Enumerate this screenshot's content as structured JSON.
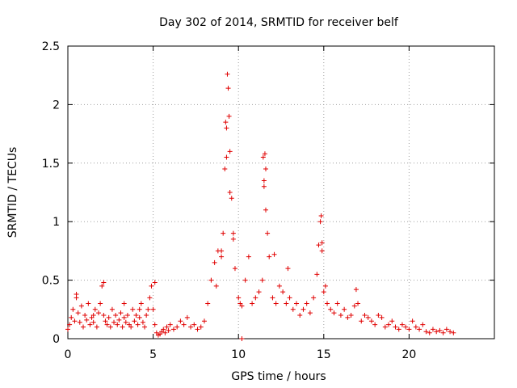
{
  "chart_data": {
    "type": "scatter",
    "title": "Day 302 of 2014, SRMTID for receiver belf",
    "xlabel": "GPS time / hours",
    "ylabel": "SRMTID / TECUs",
    "xlim": [
      0,
      25
    ],
    "ylim": [
      0,
      2.5
    ],
    "x_ticks": [
      0,
      5,
      10,
      15,
      20
    ],
    "x_tick_labels": [
      "0",
      "5",
      "10",
      "15",
      "20"
    ],
    "y_ticks": [
      0,
      0.5,
      1,
      1.5,
      2,
      2.5
    ],
    "y_tick_labels": [
      "0",
      "0.5",
      "1",
      "1.5",
      "2",
      "2.5"
    ],
    "grid": true,
    "marker": "plus",
    "color": "#e00000",
    "series": [
      {
        "name": "SRMTID",
        "x": [
          0.0,
          0.1,
          0.2,
          0.3,
          0.4,
          0.5,
          0.6,
          0.7,
          0.8,
          0.9,
          1.0,
          1.1,
          1.2,
          1.3,
          1.4,
          1.5,
          1.6,
          1.7,
          1.8,
          1.9,
          2.0,
          2.1,
          2.2,
          2.3,
          2.4,
          2.5,
          2.6,
          2.7,
          2.8,
          2.9,
          3.0,
          3.1,
          3.2,
          3.3,
          3.4,
          3.5,
          3.6,
          3.7,
          3.8,
          3.9,
          4.0,
          4.1,
          4.2,
          4.3,
          4.4,
          4.5,
          4.6,
          4.7,
          4.8,
          4.9,
          5.0,
          5.1,
          5.2,
          5.3,
          5.4,
          5.5,
          5.6,
          5.7,
          5.8,
          5.9,
          6.0,
          6.2,
          6.4,
          6.6,
          6.8,
          7.0,
          7.2,
          7.4,
          7.6,
          7.8,
          8.0,
          8.2,
          8.4,
          8.6,
          8.8,
          9.0,
          9.1,
          9.2,
          9.3,
          9.35,
          9.4,
          9.5,
          9.6,
          9.7,
          9.8,
          10.0,
          10.1,
          10.2,
          10.4,
          10.6,
          10.8,
          11.0,
          11.2,
          11.4,
          11.5,
          11.55,
          11.6,
          11.7,
          11.8,
          12.0,
          12.2,
          12.4,
          12.6,
          12.8,
          13.0,
          13.2,
          13.4,
          13.6,
          13.8,
          14.0,
          14.2,
          14.4,
          14.6,
          14.7,
          14.8,
          14.9,
          15.0,
          15.2,
          15.4,
          15.6,
          15.8,
          16.0,
          16.2,
          16.4,
          16.6,
          16.8,
          17.0,
          17.2,
          17.4,
          17.6,
          17.8,
          18.0,
          18.2,
          18.4,
          18.6,
          18.8,
          19.0,
          19.2,
          19.4,
          19.6,
          19.8,
          20.0,
          20.2,
          20.4,
          20.6,
          20.8,
          21.0,
          21.2,
          21.4,
          21.6,
          21.8,
          22.0,
          22.2,
          22.4,
          22.6,
          0.5,
          1.5,
          2.1,
          3.3,
          4.2,
          5.1,
          8.7,
          9.0,
          9.25,
          9.3,
          9.45,
          9.5,
          9.7,
          11.45,
          11.5,
          11.6,
          12.1,
          12.9,
          14.85,
          14.9,
          15.1,
          16.9,
          10.2
        ],
        "y": [
          0.08,
          0.12,
          0.18,
          0.25,
          0.15,
          0.35,
          0.22,
          0.14,
          0.28,
          0.1,
          0.2,
          0.16,
          0.3,
          0.12,
          0.18,
          0.14,
          0.25,
          0.1,
          0.22,
          0.3,
          0.45,
          0.2,
          0.15,
          0.12,
          0.18,
          0.1,
          0.25,
          0.14,
          0.2,
          0.12,
          0.16,
          0.22,
          0.1,
          0.18,
          0.14,
          0.2,
          0.12,
          0.1,
          0.25,
          0.15,
          0.2,
          0.12,
          0.18,
          0.3,
          0.14,
          0.1,
          0.2,
          0.25,
          0.35,
          0.45,
          0.25,
          0.12,
          0.05,
          0.03,
          0.04,
          0.06,
          0.08,
          0.05,
          0.1,
          0.07,
          0.12,
          0.08,
          0.1,
          0.15,
          0.12,
          0.18,
          0.1,
          0.12,
          0.08,
          0.1,
          0.15,
          0.3,
          0.5,
          0.65,
          0.75,
          0.7,
          0.9,
          1.45,
          1.8,
          2.26,
          2.14,
          1.6,
          1.2,
          0.85,
          0.6,
          0.35,
          0.3,
          0.28,
          0.5,
          0.7,
          0.3,
          0.35,
          0.4,
          0.5,
          1.35,
          1.58,
          1.1,
          0.9,
          0.7,
          0.35,
          0.3,
          0.45,
          0.4,
          0.3,
          0.35,
          0.25,
          0.3,
          0.2,
          0.25,
          0.3,
          0.22,
          0.35,
          0.55,
          0.8,
          1.0,
          0.75,
          0.4,
          0.3,
          0.25,
          0.22,
          0.3,
          0.2,
          0.25,
          0.18,
          0.2,
          0.28,
          0.3,
          0.15,
          0.2,
          0.18,
          0.15,
          0.12,
          0.2,
          0.18,
          0.1,
          0.12,
          0.15,
          0.1,
          0.08,
          0.12,
          0.1,
          0.08,
          0.15,
          0.1,
          0.08,
          0.12,
          0.06,
          0.05,
          0.08,
          0.06,
          0.07,
          0.05,
          0.08,
          0.06,
          0.05,
          0.38,
          0.2,
          0.48,
          0.3,
          0.25,
          0.48,
          0.45,
          0.75,
          1.85,
          1.55,
          1.9,
          1.25,
          0.9,
          1.55,
          1.3,
          1.45,
          0.72,
          0.6,
          1.05,
          0.82,
          0.45,
          0.42,
          0.0
        ]
      }
    ]
  }
}
